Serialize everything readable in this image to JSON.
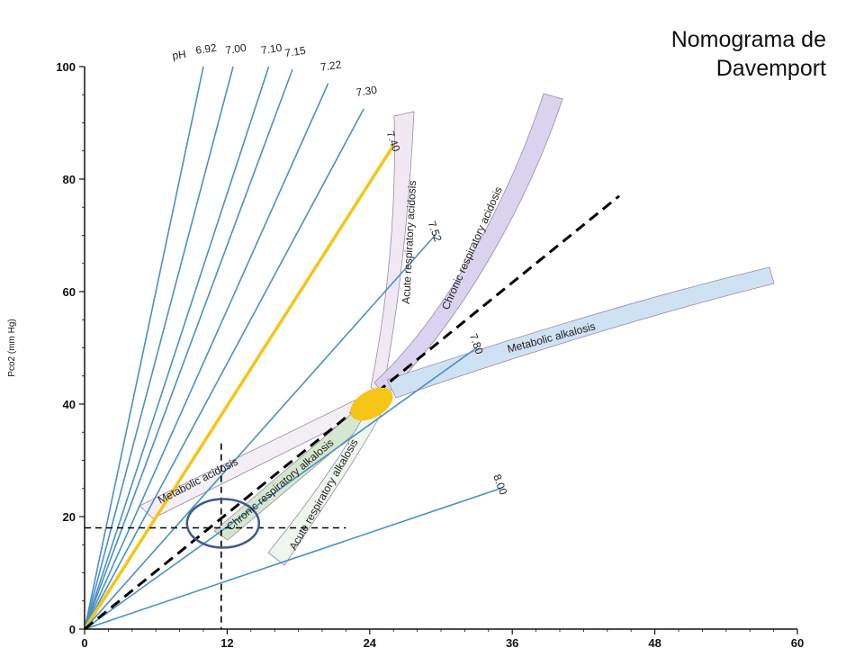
{
  "title": {
    "line1": "Nomograma de",
    "line2": "Davemport"
  },
  "chart_data": {
    "type": "line",
    "title": "Nomograma de Davemport",
    "xlabel": "",
    "ylabel": "Pco2 (mm Hg)",
    "xlim": [
      0,
      60
    ],
    "ylim": [
      0,
      100
    ],
    "x_ticks": [
      "0",
      "12",
      "24",
      "36",
      "48",
      "60"
    ],
    "y_ticks": [
      "0",
      "20",
      "40",
      "60",
      "80",
      "100"
    ],
    "ph_prefix": "pH",
    "colors": {
      "isobar": "#4a90c8",
      "normal": "#f5c518",
      "reference": "#000000",
      "circle": "#3a5a8a"
    },
    "ph_isobars": [
      {
        "label": "6.92",
        "end": [
          10,
          100
        ]
      },
      {
        "label": "7.00",
        "end": [
          12.5,
          100
        ]
      },
      {
        "label": "7.10",
        "end": [
          15.5,
          100
        ]
      },
      {
        "label": "7.15",
        "end": [
          17.5,
          99.5
        ]
      },
      {
        "label": "7.22",
        "end": [
          20.5,
          97
        ]
      },
      {
        "label": "7.30",
        "end": [
          23.5,
          92.5
        ]
      },
      {
        "label": "7.40",
        "end": [
          26,
          86
        ]
      },
      {
        "label": "7.52",
        "end": [
          29.5,
          70
        ]
      },
      {
        "label": "7.80",
        "end": [
          33,
          50
        ]
      },
      {
        "label": "8.00",
        "end": [
          35,
          25
        ]
      }
    ],
    "bands": [
      {
        "name": "Acute respiratory acidosis",
        "color": "#f1e8f3"
      },
      {
        "name": "Chronic respiratory acidosis",
        "color": "#d9d3f0"
      },
      {
        "name": "Metabolic alkalosis",
        "color": "#cfe2f3"
      },
      {
        "name": "Metabolic acidosis",
        "color": "#f4eef5"
      },
      {
        "name": "Chronic respiratory alkalosis",
        "color": "#d5e8cf"
      },
      {
        "name": "Acute respiratory alkalosis",
        "color": "#eef6ee"
      }
    ],
    "normal_region": {
      "x": 24,
      "y": 40
    },
    "reference_line": {
      "from": [
        0,
        0
      ],
      "to": [
        45,
        77
      ]
    },
    "crosshair": {
      "x": 11.5,
      "y": 18
    },
    "grid": false
  }
}
